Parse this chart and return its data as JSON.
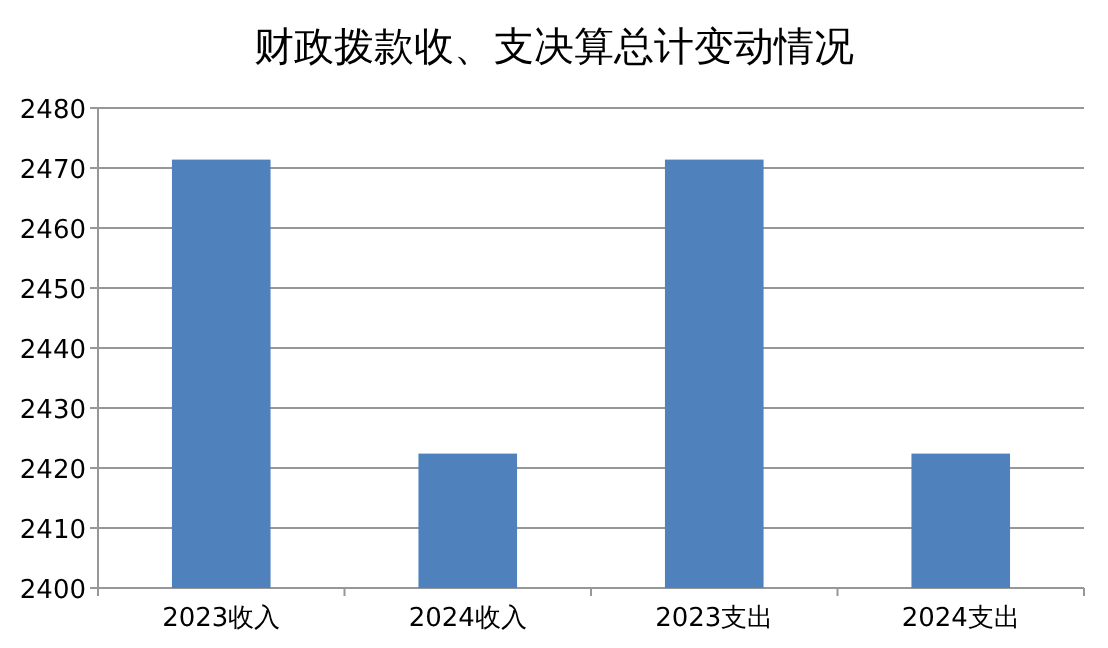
{
  "chart_data": {
    "type": "bar",
    "title": "财政拨款收、支决算总计变动情况",
    "categories": [
      "2023收入",
      "2024收入",
      "2023支出",
      "2024支出"
    ],
    "values": [
      2471.4,
      2422.4,
      2471.4,
      2422.4
    ],
    "color": "#4f81bd",
    "ylim": [
      2400,
      2480
    ],
    "yticks": [
      2400,
      2410,
      2420,
      2430,
      2440,
      2450,
      2460,
      2470,
      2480
    ],
    "grid": "y"
  }
}
